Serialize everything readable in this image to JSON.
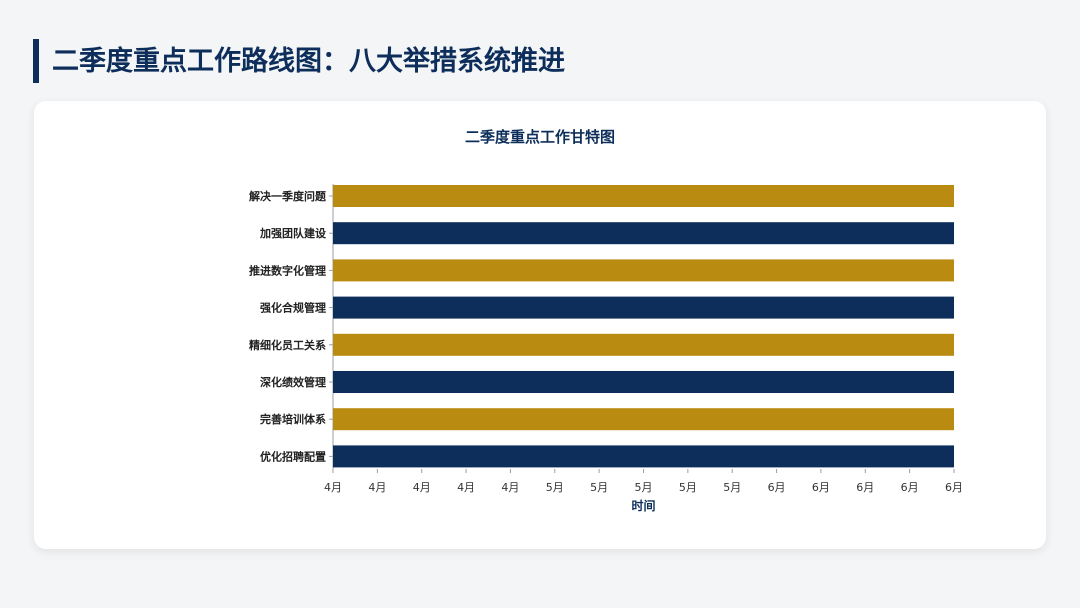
{
  "page": {
    "title": "二季度重点工作路线图：八大举措系统推进"
  },
  "colors": {
    "navy": "#0d2e5a",
    "gold": "#b98b10",
    "background": "#f4f5f7",
    "card": "#ffffff"
  },
  "chart_data": {
    "type": "bar",
    "orientation": "horizontal-gantt",
    "title": "二季度重点工作甘特图",
    "xlabel": "时间",
    "ylabel": "",
    "grid": false,
    "legend": "none",
    "tasks": [
      {
        "name": "解决一季度问题",
        "start": "4月",
        "end": "6月",
        "color": "#b98b10"
      },
      {
        "name": "加强团队建设",
        "start": "4月",
        "end": "6月",
        "color": "#0d2e5a"
      },
      {
        "name": "推进数字化管理",
        "start": "4月",
        "end": "6月",
        "color": "#b98b10"
      },
      {
        "name": "强化合规管理",
        "start": "4月",
        "end": "6月",
        "color": "#0d2e5a"
      },
      {
        "name": "精细化员工关系",
        "start": "4月",
        "end": "6月",
        "color": "#b98b10"
      },
      {
        "name": "深化绩效管理",
        "start": "4月",
        "end": "6月",
        "color": "#0d2e5a"
      },
      {
        "name": "完善培训体系",
        "start": "4月",
        "end": "6月",
        "color": "#b98b10"
      },
      {
        "name": "优化招聘配置",
        "start": "4月",
        "end": "6月",
        "color": "#0d2e5a"
      }
    ],
    "x_tick_labels": [
      "4月",
      "4月",
      "4月",
      "4月",
      "4月",
      "5月",
      "5月",
      "5月",
      "5月",
      "5月",
      "6月",
      "6月",
      "6月",
      "6月",
      "6月"
    ]
  }
}
